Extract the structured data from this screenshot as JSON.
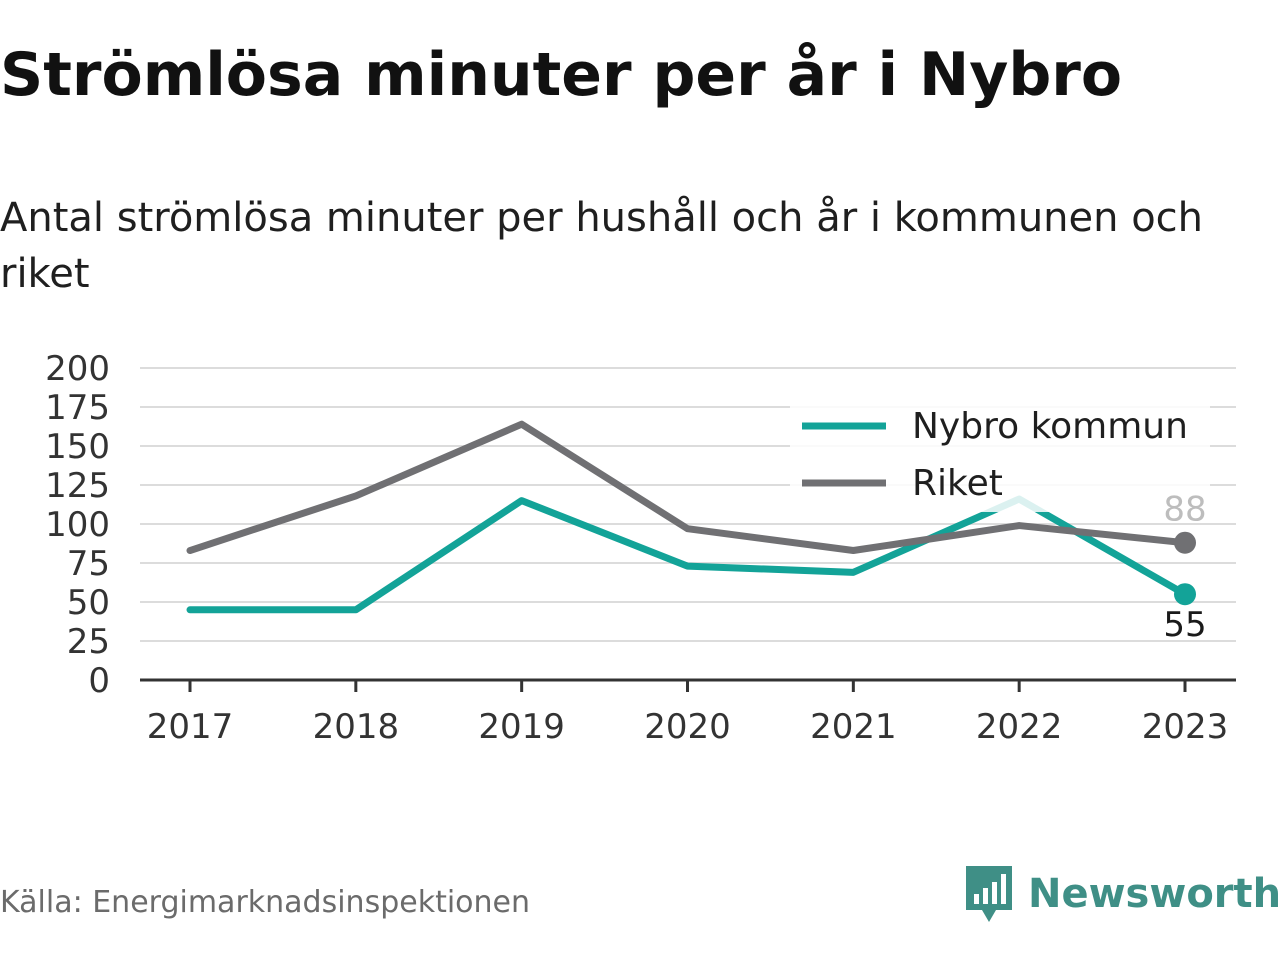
{
  "title": "Strömlösa minuter per år i Nybro",
  "subtitle": "Antal strömlösa minuter per hushåll och år i kommunen och riket",
  "source": "Källa: Energimarknadsinspektionen",
  "brand": "Newsworthy",
  "colors": {
    "nybro": "#13a398",
    "riket": "#707073",
    "grid": "#dcdcdc",
    "axis": "#333333",
    "brand": "#3f8f86"
  },
  "chart_data": {
    "type": "line",
    "categories": [
      "2017",
      "2018",
      "2019",
      "2020",
      "2021",
      "2022",
      "2023"
    ],
    "series": [
      {
        "name": "Nybro kommun",
        "values": [
          45,
          45,
          115,
          73,
          69,
          116,
          55
        ],
        "color": "#13a398",
        "end_label": "55"
      },
      {
        "name": "Riket",
        "values": [
          83,
          118,
          164,
          97,
          83,
          99,
          88
        ],
        "color": "#707073",
        "end_label": "88"
      }
    ],
    "yticks": [
      "0",
      "25",
      "50",
      "75",
      "100",
      "125",
      "150",
      "175",
      "200"
    ],
    "ylim": [
      0,
      200
    ],
    "grid": true,
    "legend_position": "top-right"
  }
}
